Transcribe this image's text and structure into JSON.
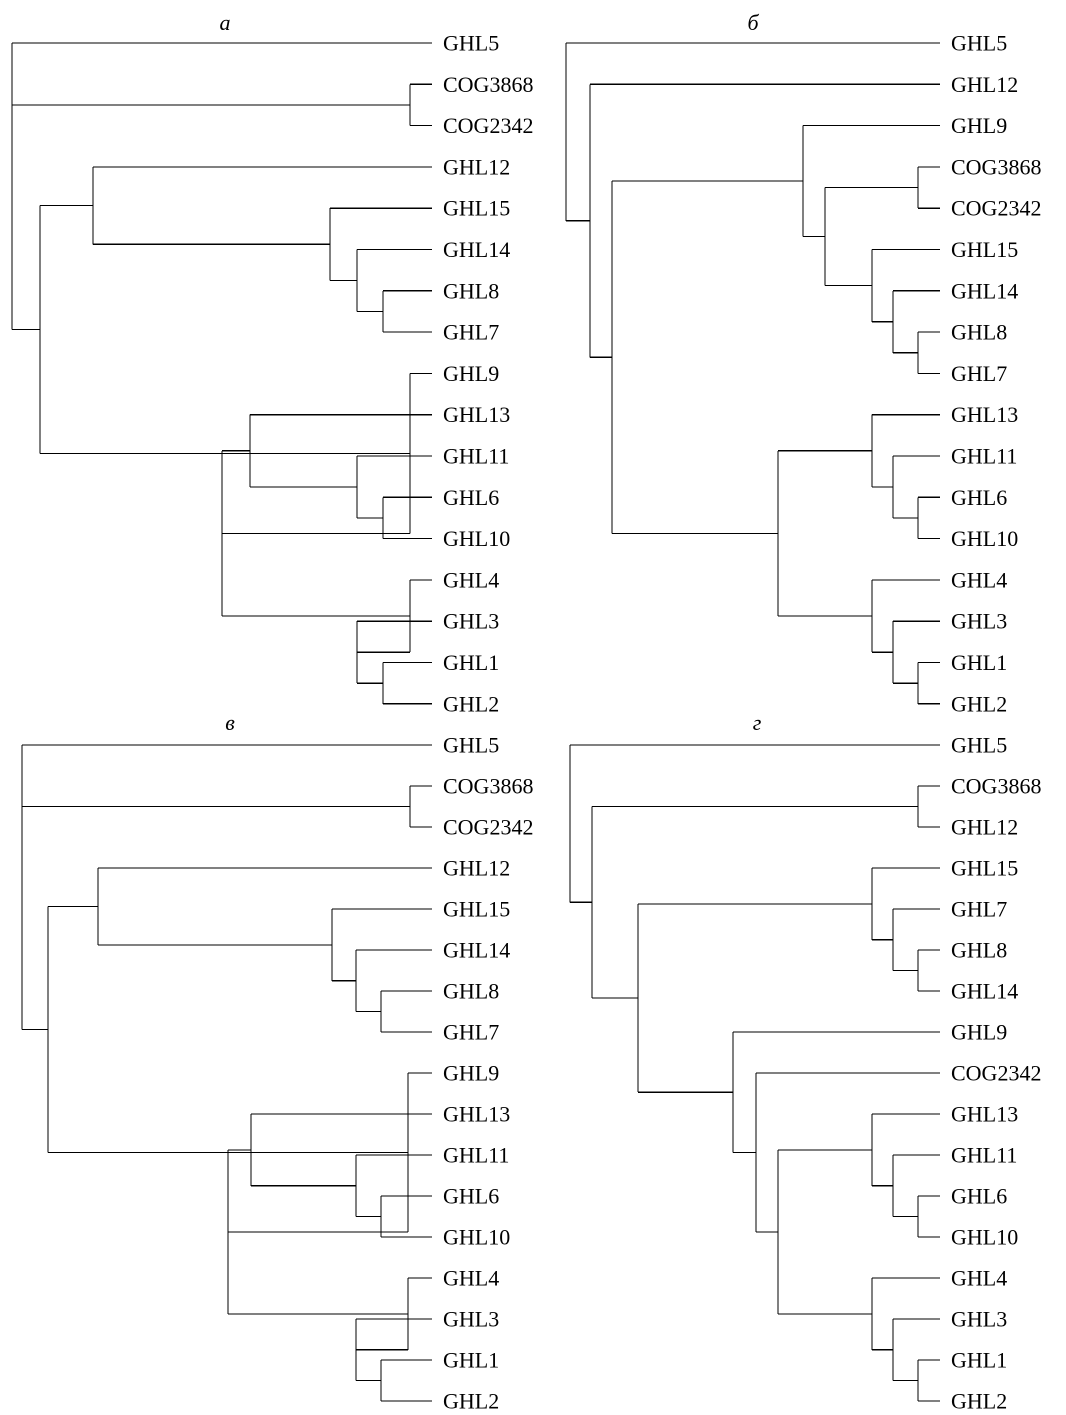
{
  "figure": {
    "panels": [
      {
        "label": "а",
        "tree": [
          "GHL5",
          [
            "COG3868",
            "COG2342"
          ],
          [
            [
              "GHL12",
              [
                "GHL15",
                [
                  "GHL14",
                  [
                    "GHL8",
                    "GHL7"
                  ]
                ]
              ]
            ],
            [
              "GHL9",
              [
                [
                  "GHL13",
                  [
                    "GHL11",
                    [
                      "GHL6",
                      "GHL10"
                    ]
                  ]
                ],
                [
                  "GHL4",
                  [
                    "GHL3",
                    [
                      "GHL1",
                      "GHL2"
                    ]
                  ]
                ]
              ]
            ]
          ]
        ]
      },
      {
        "label": "б",
        "tree": [
          "GHL5",
          [
            "GHL12",
            [
              [
                "GHL9",
                [
                  [
                    "COG3868",
                    "COG2342"
                  ],
                  [
                    "GHL15",
                    [
                      "GHL14",
                      [
                        "GHL8",
                        "GHL7"
                      ]
                    ]
                  ]
                ]
              ],
              [
                [
                  "GHL13",
                  [
                    "GHL11",
                    [
                      "GHL6",
                      "GHL10"
                    ]
                  ]
                ],
                [
                  "GHL4",
                  [
                    "GHL3",
                    [
                      "GHL1",
                      "GHL2"
                    ]
                  ]
                ]
              ]
            ]
          ]
        ]
      },
      {
        "label": "в",
        "tree": [
          "GHL5",
          [
            "COG3868",
            "COG2342"
          ],
          [
            [
              "GHL12",
              [
                "GHL15",
                [
                  "GHL14",
                  [
                    "GHL8",
                    "GHL7"
                  ]
                ]
              ]
            ],
            [
              "GHL9",
              [
                [
                  "GHL13",
                  [
                    "GHL11",
                    [
                      "GHL6",
                      "GHL10"
                    ]
                  ]
                ],
                [
                  "GHL4",
                  [
                    "GHL3",
                    [
                      "GHL1",
                      "GHL2"
                    ]
                  ]
                ]
              ]
            ]
          ]
        ]
      },
      {
        "label": "г",
        "tree": [
          "GHL5",
          [
            [
              "COG3868",
              "GHL12"
            ],
            [
              [
                "GHL15",
                [
                  "GHL7",
                  [
                    "GHL8",
                    "GHL14"
                  ]
                ]
              ],
              [
                "GHL9",
                [
                  "COG2342",
                  [
                    [
                      "GHL13",
                      [
                        "GHL11",
                        [
                          "GHL6",
                          "GHL10"
                        ]
                      ]
                    ],
                    [
                      "GHL4",
                      [
                        "GHL3",
                        [
                          "GHL1",
                          "GHL2"
                        ]
                      ]
                    ]
                  ]
                ]
              ]
            ]
          ]
        ]
      }
    ]
  }
}
